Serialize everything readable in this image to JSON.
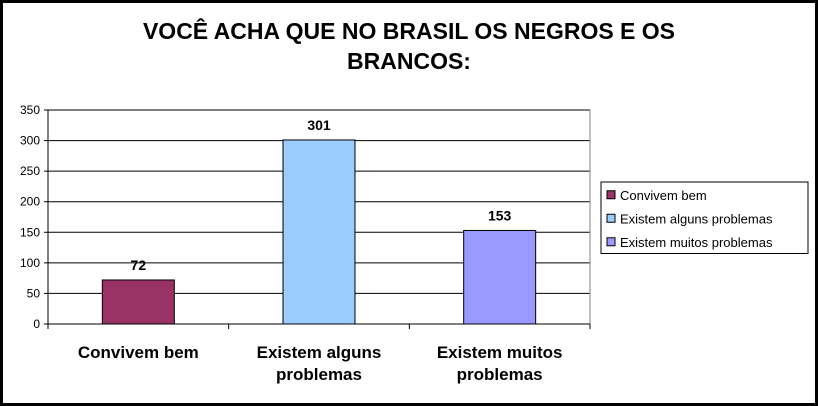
{
  "chart_data": {
    "type": "bar",
    "title": "VOCÊ ACHA QUE NO BRASIL OS NEGROS E OS\nBRANCOS:",
    "categories": [
      "Convivem bem",
      "Existem alguns problemas",
      "Existem muitos problemas"
    ],
    "values": [
      72,
      301,
      153
    ],
    "colors": [
      "#993366",
      "#99ccff",
      "#9999ff"
    ],
    "ylim": [
      0,
      350
    ],
    "yticks": [
      0,
      50,
      100,
      150,
      200,
      250,
      300,
      350
    ],
    "grid": true,
    "legend": "right",
    "data_labels": true
  }
}
